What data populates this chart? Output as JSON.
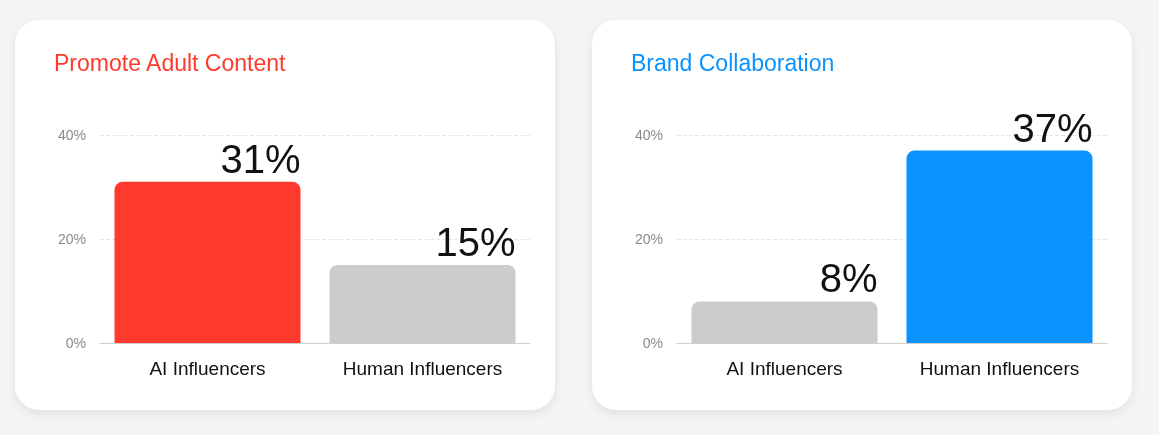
{
  "chart_data": [
    {
      "type": "bar",
      "title": "Promote Adult Content",
      "categories": [
        "AI Influencers",
        "Human Influencers"
      ],
      "values": [
        31,
        15
      ],
      "colors": [
        "#fd3a2b",
        "#cccccc"
      ],
      "value_labels": [
        "31%",
        "15%"
      ],
      "ylim": [
        0,
        40
      ],
      "yticks": [
        {
          "value": 0,
          "label": "0%"
        },
        {
          "value": 20,
          "label": "20%"
        },
        {
          "value": 40,
          "label": "40%"
        }
      ],
      "grid": "y"
    },
    {
      "type": "bar",
      "title": "Brand Collaboration",
      "categories": [
        "AI Influencers",
        "Human Influencers"
      ],
      "values": [
        8,
        37
      ],
      "colors": [
        "#cccccc",
        "#0a92ff"
      ],
      "value_labels": [
        "8%",
        "37%"
      ],
      "ylim": [
        0,
        40
      ],
      "yticks": [
        {
          "value": 0,
          "label": "0%"
        },
        {
          "value": 20,
          "label": "20%"
        },
        {
          "value": 40,
          "label": "40%"
        }
      ],
      "grid": "y"
    }
  ]
}
